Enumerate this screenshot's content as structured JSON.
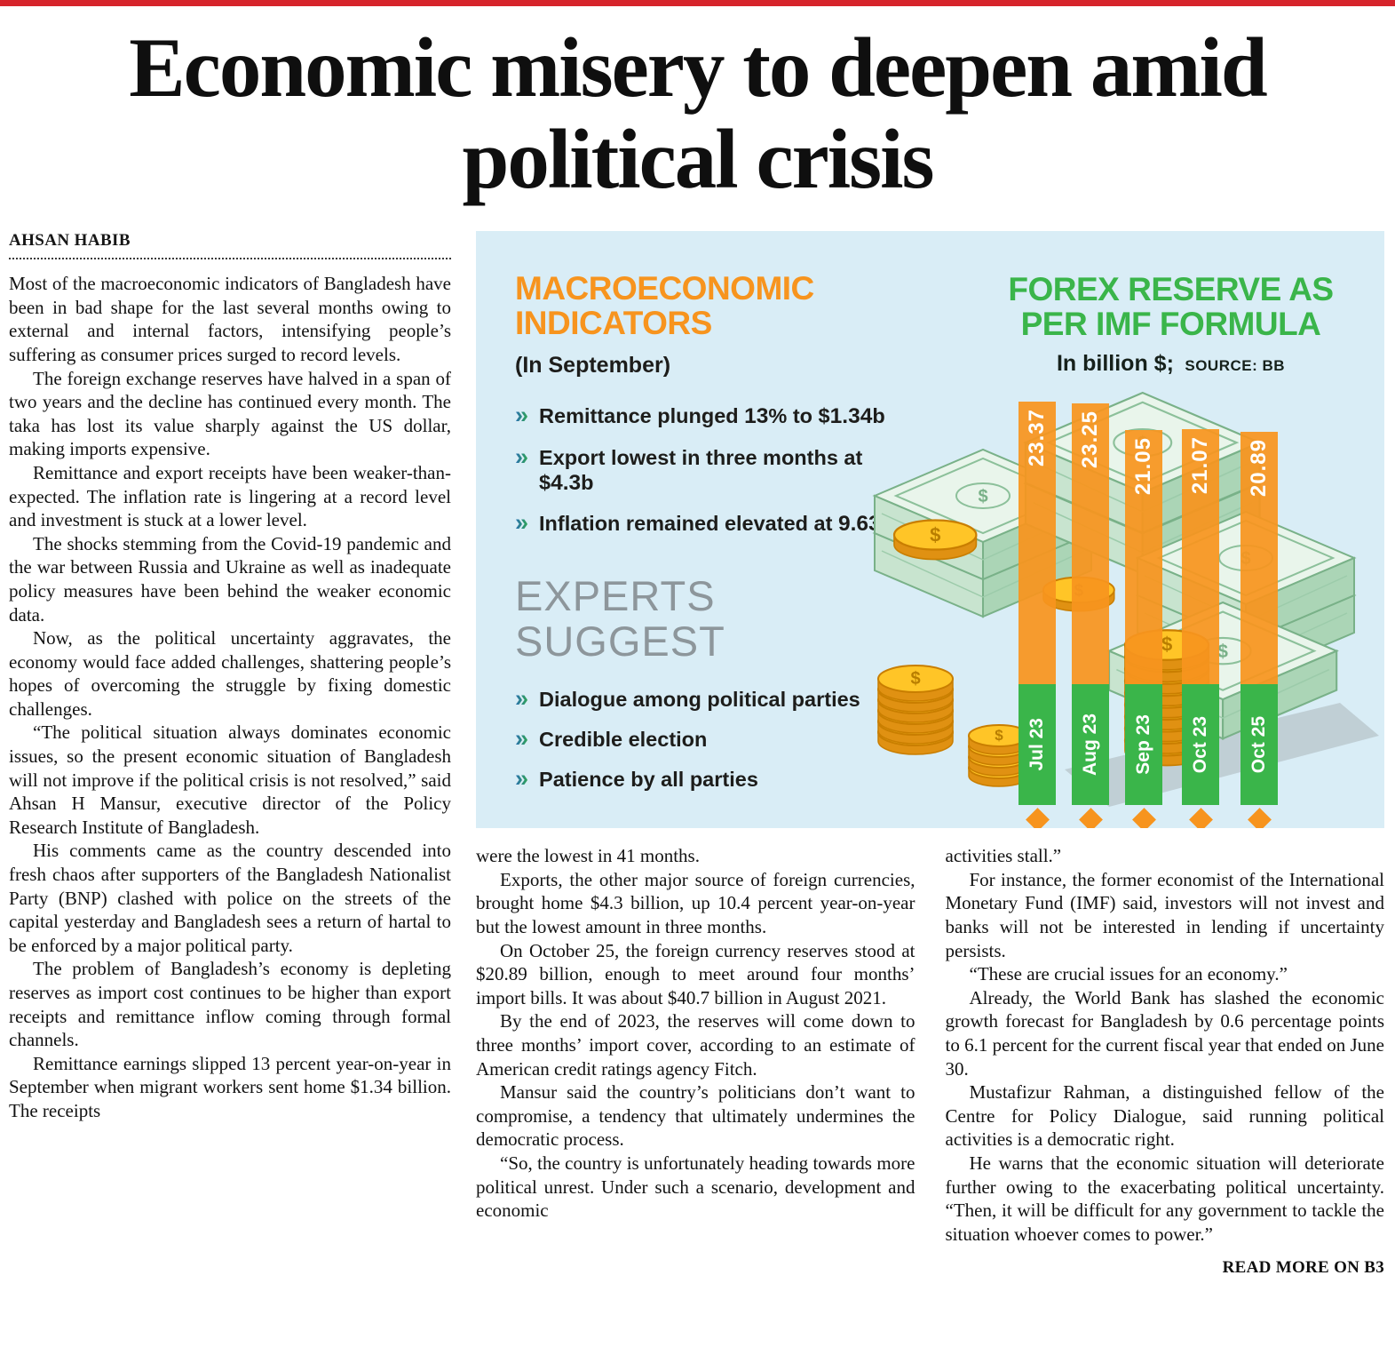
{
  "page": {
    "top_rule_color": "#d6242b"
  },
  "headline": "Economic misery to deepen amid political crisis",
  "byline": "AHSAN HABIB",
  "article": {
    "col1": [
      "Most of the macroeconomic indicators of Bangladesh have been in bad shape for the last several months owing to external and internal factors, intensifying people’s suffering as consumer prices surged to record levels.",
      "The foreign exchange reserves have halved in a span of two years and the decline has continued every month. The taka has lost its value sharply against the US dollar, making imports expensive.",
      "Remittance and export receipts have been weaker-than-expected. The inflation rate is lingering at a record level and investment is stuck at a lower level.",
      "The shocks stemming from the Covid-19 pandemic and the war between Russia and Ukraine as well as inadequate policy measures have been behind the weaker economic data.",
      "Now, as the political uncertainty aggravates, the economy would face added challenges, shattering people’s hopes of overcoming the struggle by fixing domestic challenges.",
      "“The political situation always dominates economic issues, so the present economic situation of Bangladesh will not improve if the political crisis is not resolved,” said Ahsan H Mansur, executive director of the Policy Research Institute of Bangladesh.",
      "His comments came as the country descended into fresh chaos after supporters of the Bangladesh Nationalist Party (BNP) clashed with police on the streets of the capital yesterday and Bangladesh sees a return of hartal to be enforced by a major political party.",
      "The problem of Bangladesh’s economy is depleting reserves as import cost continues to be higher than export receipts and remittance inflow coming through formal channels.",
      "Remittance earnings slipped 13 percent year-on-year in September when migrant workers sent home $1.34 billion. The receipts"
    ],
    "col2": [
      "were the lowest in 41 months.",
      "Exports, the other major source of foreign currencies, brought home $4.3 billion, up 10.4 percent year-on-year but the lowest amount in three months.",
      "On October 25, the foreign currency reserves stood at $20.89 billion, enough to meet around four months’ import bills. It was about $40.7 billion in August 2021.",
      "By the end of 2023, the reserves will come down to three months’ import cover, according to an estimate of American credit ratings agency Fitch.",
      "Mansur said the country’s politicians don’t want to compromise, a tendency that ultimately undermines the democratic process.",
      "“So, the country is unfortunately heading towards more political unrest. Under such a scenario, development and economic"
    ],
    "col3": [
      "activities stall.”",
      "For instance, the former economist of the International Monetary Fund (IMF) said, investors will not invest and banks will not be interested in lending if uncertainty persists.",
      "“These are crucial issues for an economy.”",
      "Already, the World Bank has slashed the economic growth forecast for Bangladesh by 0.6 percentage points to 6.1 percent for the current fiscal year that ended on June 30.",
      "Mustafizur Rahman, a distinguished fellow of the Centre for Policy Dialogue, said running political activities is a democratic right.",
      "He warns that the economic situation will deteriorate further owing to the exacerbating political uncertainty. “Then, it will be difficult for any government to tackle the situation whoever comes to power.”"
    ],
    "read_more": "READ MORE ON B3"
  },
  "infographic": {
    "background": "#d9edf6",
    "macro": {
      "title": "MACROECONOMIC INDICATORS",
      "title_color": "#F7941E",
      "subtitle": "(In September)",
      "bullets": [
        {
          "segments": [
            {
              "t": "Remittance plunged ",
              "b": false
            },
            {
              "t": "13",
              "b": true
            },
            {
              "t": "% to $",
              "b": false
            },
            {
              "t": "1.34",
              "b": true
            },
            {
              "t": "b",
              "b": false
            }
          ]
        },
        {
          "segments": [
            {
              "t": "Export lowest in three months at $",
              "b": false
            },
            {
              "t": "4.3",
              "b": true
            },
            {
              "t": "b",
              "b": false
            }
          ]
        },
        {
          "segments": [
            {
              "t": "Inflation remained elevated at ",
              "b": false
            },
            {
              "t": "9.63",
              "b": true
            },
            {
              "t": "%",
              "b": false
            }
          ]
        }
      ]
    },
    "experts": {
      "title": "EXPERTS SUGGEST",
      "title_color": "#8d969b",
      "bullets": [
        {
          "segments": [
            {
              "t": "Dialogue among political parties",
              "b": false
            }
          ]
        },
        {
          "segments": [
            {
              "t": "Credible election",
              "b": false
            }
          ]
        },
        {
          "segments": [
            {
              "t": "Patience by all parties",
              "b": false
            }
          ]
        }
      ]
    },
    "forex": {
      "title": "FOREX RESERVE AS PER IMF FORMULA",
      "title_color": "#3AB54A",
      "unit": "In billion $;",
      "source": "SOURCE: BB"
    }
  },
  "chart_data": {
    "type": "bar",
    "title": "FOREX RESERVE AS PER IMF FORMULA",
    "subtitle": "In billion $",
    "source": "BB",
    "categories": [
      "Jul 23",
      "Aug 23",
      "Sep 23",
      "Oct 23",
      "Oct 25"
    ],
    "values": [
      23.37,
      23.25,
      21.05,
      21.07,
      20.89
    ],
    "ylim": [
      0,
      25
    ],
    "bar_color": "#F7941E",
    "category_bar_color": "#3AB54A",
    "value_label_color": "#ffffff",
    "legend": false,
    "grid": false
  }
}
